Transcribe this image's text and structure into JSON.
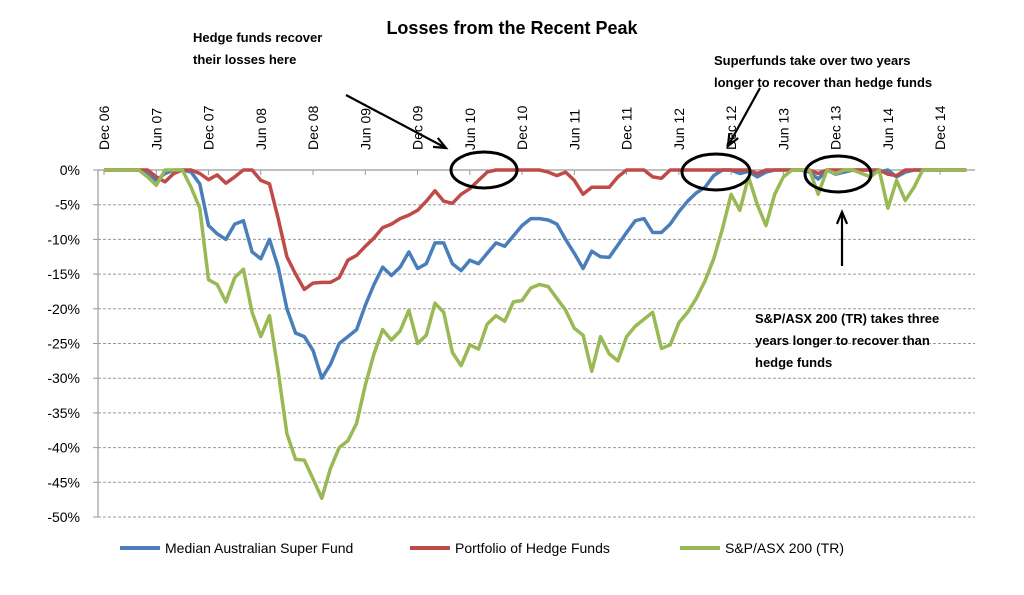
{
  "chart_data": {
    "type": "line",
    "title": "Losses from the Recent Peak",
    "xlabel": "",
    "ylabel": "",
    "x_start": "Dec 06",
    "x_tick_labels": [
      "Dec 06",
      "Jun 07",
      "Dec 07",
      "Jun 08",
      "Dec 08",
      "Jun 09",
      "Dec 09",
      "Jun 10",
      "Dec 10",
      "Jun 11",
      "Dec 11",
      "Jun 12",
      "Dec 12",
      "Jun 13",
      "Dec 13",
      "Jun 14",
      "Dec 14"
    ],
    "y_tick_labels": [
      "0%",
      "-5%",
      "-10%",
      "-15%",
      "-20%",
      "-25%",
      "-30%",
      "-35%",
      "-40%",
      "-45%",
      "-50%"
    ],
    "ylim": [
      -50,
      0
    ],
    "grid": true,
    "legend_position": "bottom",
    "series": [
      {
        "name": "Median Australian Super Fund",
        "color": "#4a7ebb",
        "values": [
          0,
          0,
          0,
          0,
          0,
          -0.5,
          -1.5,
          -0.5,
          0,
          0,
          -0.3,
          -2,
          -8,
          -9.2,
          -10,
          -7.8,
          -7.3,
          -11.8,
          -12.8,
          -10,
          -14,
          -20,
          -23.5,
          -24,
          -26,
          -30,
          -28,
          -25,
          -24,
          -23,
          -19.5,
          -16.5,
          -14,
          -15.2,
          -14,
          -11.8,
          -14.2,
          -13.5,
          -10.5,
          -10.5,
          -13.5,
          -14.5,
          -13,
          -13.5,
          -12,
          -10.5,
          -11,
          -9.5,
          -8,
          -7,
          -7,
          -7.2,
          -7.8,
          -10,
          -12,
          -14.2,
          -11.7,
          -12.5,
          -12.6,
          -10.8,
          -9,
          -7.3,
          -7,
          -9,
          -9,
          -7.8,
          -6,
          -4.5,
          -3.3,
          -2.5,
          -0.8,
          0,
          0,
          -0.5,
          -0.2,
          -1,
          -0.3,
          0,
          0,
          0,
          0,
          -0.3,
          -1.3,
          0,
          -0.6,
          -0.3,
          0,
          0,
          0,
          -0.3,
          0,
          -1,
          -0.3,
          0,
          0,
          0,
          0,
          0,
          0,
          0
        ]
      },
      {
        "name": "Portfolio of Hedge Funds",
        "color": "#be4b48",
        "values": [
          0,
          0,
          0,
          0,
          0,
          0,
          -1,
          -1.7,
          -0.5,
          0,
          0,
          -0.5,
          -1.4,
          -0.7,
          -1.9,
          -1,
          0,
          0,
          -1.5,
          -2,
          -7,
          -12.5,
          -15,
          -17.2,
          -16.3,
          -16.2,
          -16.2,
          -15.5,
          -13,
          -12.3,
          -11,
          -9.8,
          -8.3,
          -7.8,
          -7,
          -6.5,
          -5.8,
          -4.5,
          -3,
          -4.5,
          -4.8,
          -3.5,
          -2.7,
          -1.5,
          -0.3,
          0,
          0,
          0,
          0,
          0,
          0,
          -0.3,
          -0.8,
          -0.3,
          -1.5,
          -3.5,
          -2.5,
          -2.5,
          -2.5,
          -1,
          0,
          0,
          0,
          -1,
          -1.2,
          0,
          0,
          0,
          0,
          0,
          0,
          0,
          0,
          0,
          0,
          -0.5,
          0,
          0,
          0,
          0,
          0,
          0,
          -0.5,
          0,
          0,
          0,
          0,
          0,
          0,
          0,
          -0.6,
          -0.8,
          0,
          0,
          0,
          0,
          0,
          0,
          0,
          0
        ]
      },
      {
        "name": "S&P/ASX 200 (TR)",
        "color": "#98b954",
        "values": [
          0,
          0,
          0,
          0,
          0,
          -1,
          -2.2,
          0,
          0,
          0,
          -2.5,
          -5.5,
          -15.8,
          -16.5,
          -19,
          -15.5,
          -14.3,
          -20.5,
          -24,
          -21,
          -29,
          -38,
          -41.7,
          -41.8,
          -44.5,
          -47.3,
          -43,
          -40,
          -39,
          -36.5,
          -31,
          -26.5,
          -23,
          -24.5,
          -23.2,
          -20.2,
          -25,
          -23.8,
          -19.2,
          -20.5,
          -26.3,
          -28.2,
          -25.2,
          -25.8,
          -22.2,
          -21,
          -21.8,
          -19,
          -18.8,
          -17,
          -16.5,
          -16.8,
          -18.5,
          -20.2,
          -22.8,
          -23.8,
          -29,
          -24,
          -26.5,
          -27.5,
          -24,
          -22.5,
          -21.5,
          -20.5,
          -25.7,
          -25.2,
          -22,
          -20.5,
          -18.5,
          -16,
          -12.8,
          -8.5,
          -3.5,
          -5.8,
          -1,
          -5,
          -8,
          -3.5,
          -1,
          0,
          0,
          0,
          -3.5,
          0,
          -0.5,
          0,
          0,
          -0.5,
          -1,
          0,
          -5.5,
          -1.5,
          -4.4,
          -2.5,
          0,
          0,
          0,
          0,
          0,
          0
        ]
      }
    ],
    "annotations": [
      {
        "text": "Hedge funds recover their losses here"
      },
      {
        "text": "Superfunds take over two years longer to recover than hedge funds"
      },
      {
        "text": "S&P/ASX 200 (TR) takes three years longer to recover than hedge funds"
      }
    ]
  },
  "annotation_lines": {
    "hedge": [
      "Hedge funds recover",
      "their losses here"
    ],
    "super": [
      "Superfunds take over two years",
      "longer to recover than hedge funds"
    ],
    "asx": [
      "S&P/ASX 200 (TR) takes three",
      "years longer to recover than",
      "hedge funds"
    ]
  }
}
